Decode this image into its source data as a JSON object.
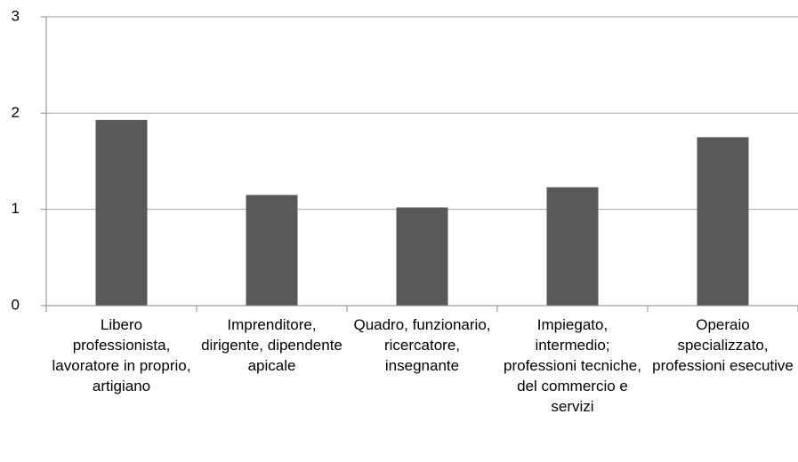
{
  "chart_data": {
    "type": "bar",
    "categories": [
      "Libero professionista, lavoratore in proprio, artigiano",
      "Imprenditore, dirigente, dipendente apicale",
      "Quadro, funzionario, ricercatore, insegnante",
      "Impiegato, intermedio; professioni tecniche, del commercio e servizi",
      "Operaio specializzato, professioni esecutive"
    ],
    "values": [
      1.93,
      1.15,
      1.02,
      1.23,
      1.75
    ],
    "color": "#595959",
    "ylim": [
      0,
      3
    ],
    "yticks": [
      0,
      1,
      2,
      3
    ],
    "grid": true
  }
}
